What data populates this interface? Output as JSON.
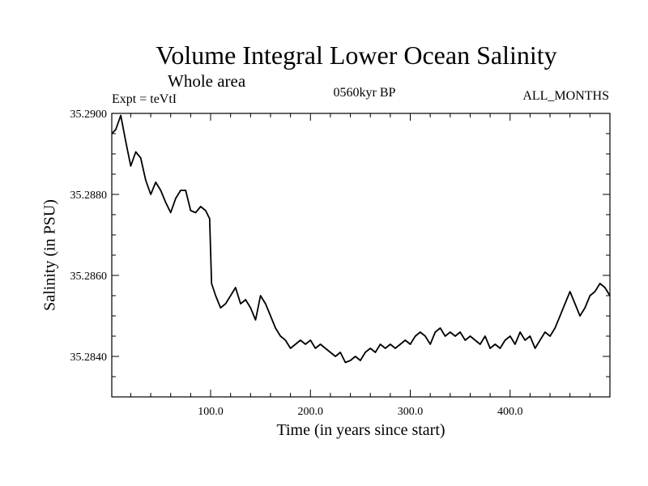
{
  "chart_data": {
    "type": "line",
    "title": "Volume Integral Lower Ocean Salinity",
    "subtitle": "Whole area",
    "annotations": {
      "experiment": "Expt = teVtI",
      "period": "0560kyr BP",
      "months": "ALL_MONTHS"
    },
    "xlabel": "Time (in years since start)",
    "ylabel": "Salinity (in PSU)",
    "xlim": [
      1,
      500
    ],
    "ylim": [
      35.283,
      35.29
    ],
    "xticks": [
      100,
      200,
      300,
      400
    ],
    "xtick_labels": [
      "100.0",
      "200.0",
      "300.0",
      "400.0"
    ],
    "yticks": [
      35.284,
      35.286,
      35.288,
      35.29
    ],
    "ytick_labels": [
      "35.2840",
      "35.2860",
      "35.2880",
      "35.2900"
    ],
    "grid": false,
    "series": [
      {
        "color": "#000000",
        "x": [
          1,
          5,
          10,
          15,
          20,
          25,
          30,
          35,
          40,
          45,
          50,
          55,
          60,
          65,
          70,
          75,
          80,
          85,
          90,
          95,
          99,
          101,
          105,
          110,
          115,
          120,
          125,
          130,
          135,
          140,
          145,
          150,
          155,
          160,
          165,
          170,
          175,
          180,
          185,
          190,
          195,
          200,
          205,
          210,
          215,
          220,
          225,
          230,
          235,
          240,
          245,
          250,
          255,
          260,
          265,
          270,
          275,
          280,
          285,
          290,
          295,
          300,
          305,
          310,
          315,
          320,
          325,
          330,
          335,
          340,
          345,
          350,
          355,
          360,
          365,
          370,
          375,
          380,
          385,
          390,
          395,
          400,
          405,
          410,
          415,
          420,
          425,
          430,
          435,
          440,
          445,
          450,
          455,
          460,
          465,
          470,
          475,
          480,
          485,
          490,
          495,
          500
        ],
        "y": [
          35.2895,
          35.2896,
          35.28995,
          35.2893,
          35.2887,
          35.28905,
          35.2889,
          35.28835,
          35.288,
          35.2883,
          35.2881,
          35.2878,
          35.28755,
          35.2879,
          35.2881,
          35.2881,
          35.2876,
          35.28755,
          35.2877,
          35.2876,
          35.2874,
          35.2858,
          35.2855,
          35.2852,
          35.2853,
          35.2855,
          35.2857,
          35.2853,
          35.2854,
          35.2852,
          35.2849,
          35.2855,
          35.2853,
          35.285,
          35.2847,
          35.2845,
          35.2844,
          35.2842,
          35.2843,
          35.2844,
          35.2843,
          35.2844,
          35.2842,
          35.2843,
          35.2842,
          35.2841,
          35.284,
          35.2841,
          35.28385,
          35.2839,
          35.284,
          35.2839,
          35.2841,
          35.2842,
          35.2841,
          35.2843,
          35.2842,
          35.2843,
          35.2842,
          35.2843,
          35.2844,
          35.2843,
          35.2845,
          35.2846,
          35.2845,
          35.2843,
          35.2846,
          35.2847,
          35.2845,
          35.2846,
          35.2845,
          35.2846,
          35.2844,
          35.2845,
          35.2844,
          35.2843,
          35.2845,
          35.2842,
          35.2843,
          35.2842,
          35.2844,
          35.2845,
          35.2843,
          35.2846,
          35.2844,
          35.2845,
          35.2842,
          35.2844,
          35.2846,
          35.2845,
          35.2847,
          35.285,
          35.2853,
          35.2856,
          35.2853,
          35.285,
          35.2852,
          35.2855,
          35.2856,
          35.2858,
          35.2857,
          35.2855
        ]
      }
    ]
  }
}
